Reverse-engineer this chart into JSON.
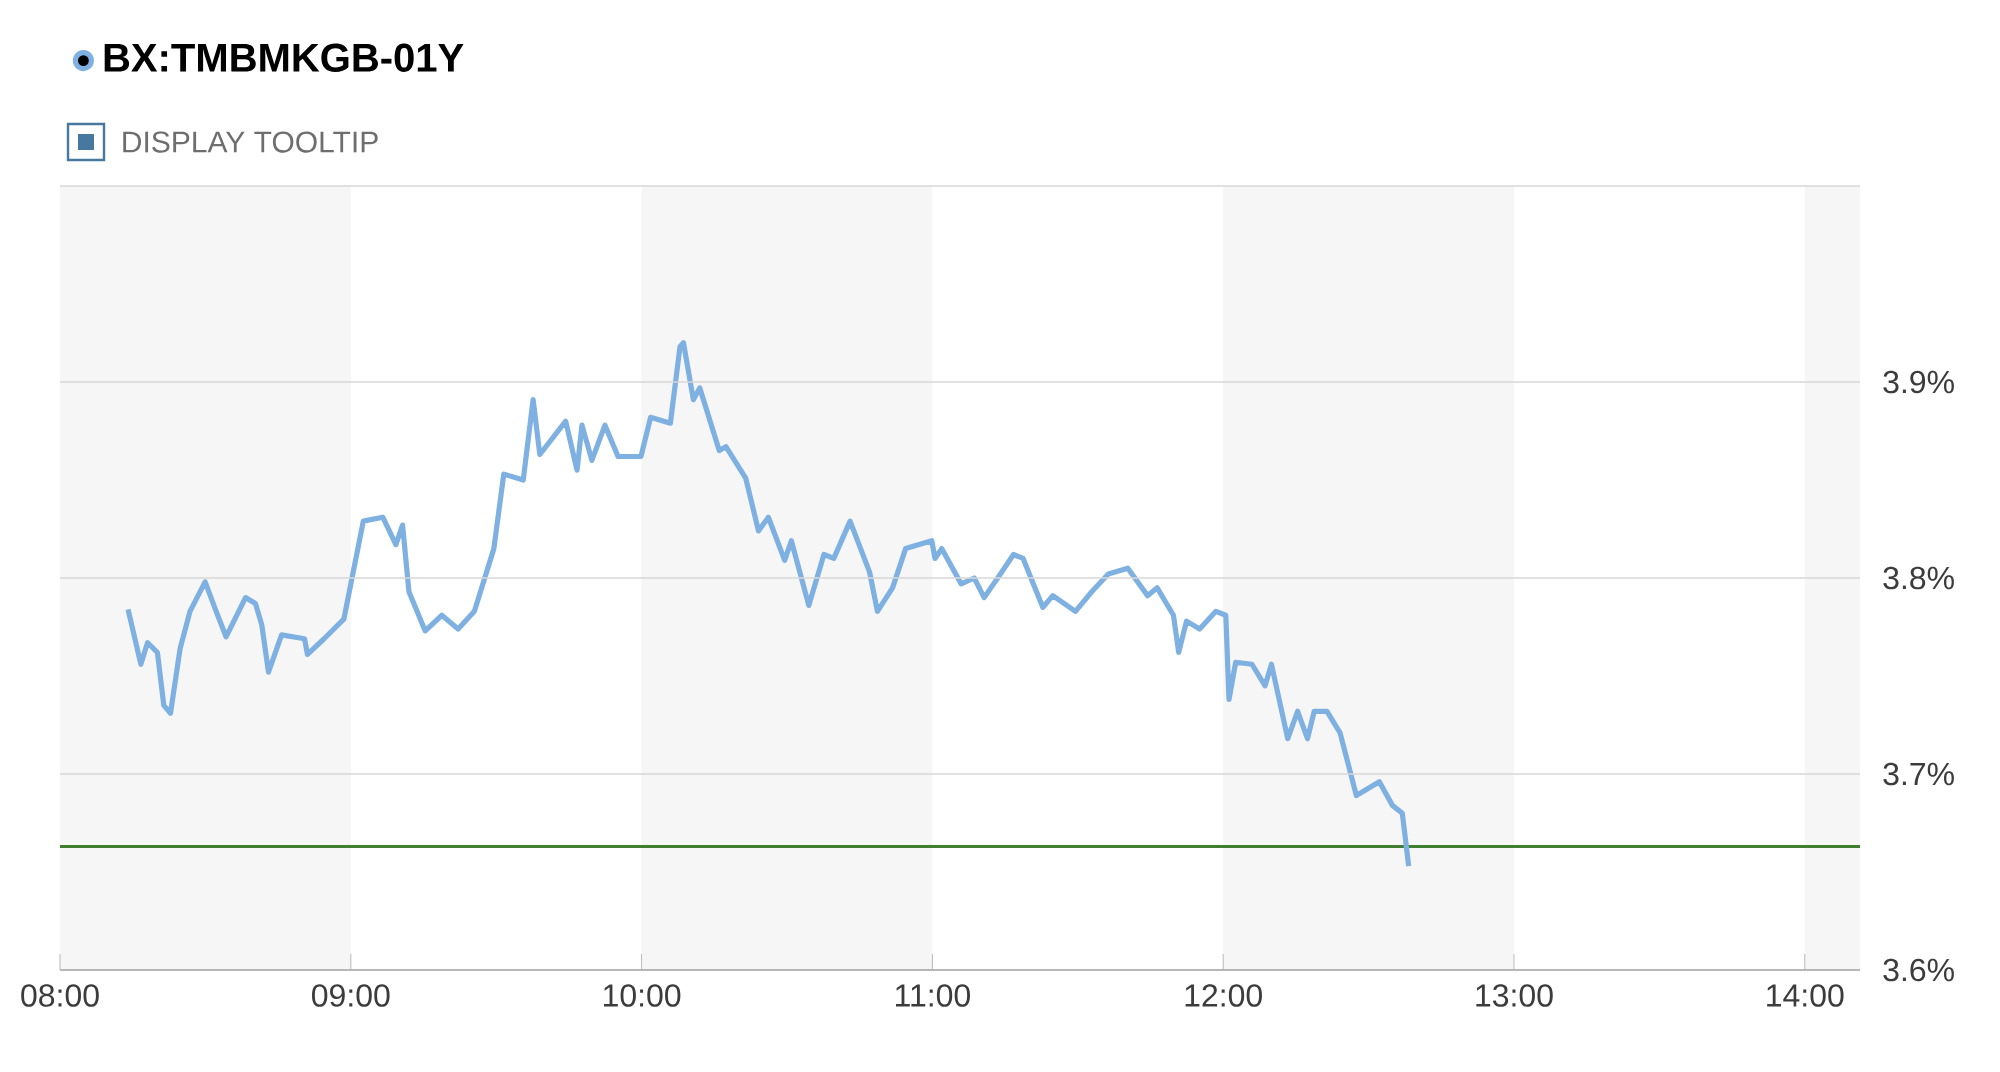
{
  "chart_data": {
    "type": "line",
    "x": [
      8.234,
      8.278,
      8.301,
      8.335,
      8.357,
      8.38,
      8.413,
      8.447,
      8.499,
      8.537,
      8.571,
      8.638,
      8.672,
      8.694,
      8.717,
      8.762,
      8.841,
      8.851,
      8.908,
      8.976,
      9.043,
      9.11,
      9.155,
      9.178,
      9.2,
      9.256,
      9.313,
      9.369,
      9.425,
      9.492,
      9.526,
      9.593,
      9.627,
      9.65,
      9.739,
      9.778,
      9.795,
      9.829,
      9.874,
      9.919,
      9.998,
      10.031,
      10.099,
      10.132,
      10.144,
      10.178,
      10.2,
      10.267,
      10.29,
      10.358,
      10.402,
      10.436,
      10.492,
      10.515,
      10.575,
      10.627,
      10.661,
      10.717,
      10.784,
      10.811,
      10.863,
      10.908,
      10.998,
      11.009,
      11.032,
      11.099,
      11.144,
      11.178,
      11.234,
      11.279,
      11.312,
      11.38,
      11.414,
      11.492,
      11.548,
      11.605,
      11.672,
      11.74,
      11.773,
      11.829,
      11.847,
      11.874,
      11.919,
      11.975,
      12.009,
      12.02,
      12.043,
      12.099,
      12.144,
      12.166,
      12.222,
      12.256,
      12.29,
      12.313,
      12.357,
      12.402,
      12.458,
      12.537,
      12.582,
      12.616,
      12.638
    ],
    "series": [
      {
        "name": "BX:TMBMKGB-01Y",
        "color": "#7fb0e2",
        "values": [
          3.784,
          3.756,
          3.767,
          3.762,
          3.735,
          3.731,
          3.764,
          3.783,
          3.798,
          3.783,
          3.77,
          3.79,
          3.787,
          3.776,
          3.752,
          3.771,
          3.769,
          3.761,
          3.769,
          3.779,
          3.829,
          3.831,
          3.817,
          3.827,
          3.793,
          3.773,
          3.781,
          3.774,
          3.783,
          3.815,
          3.853,
          3.85,
          3.891,
          3.863,
          3.88,
          3.855,
          3.878,
          3.86,
          3.878,
          3.862,
          3.862,
          3.882,
          3.879,
          3.918,
          3.92,
          3.891,
          3.897,
          3.865,
          3.867,
          3.851,
          3.824,
          3.831,
          3.809,
          3.819,
          3.786,
          3.812,
          3.81,
          3.829,
          3.803,
          3.783,
          3.795,
          3.815,
          3.819,
          3.81,
          3.815,
          3.797,
          3.8,
          3.79,
          3.802,
          3.812,
          3.81,
          3.785,
          3.791,
          3.783,
          3.793,
          3.802,
          3.805,
          3.791,
          3.795,
          3.781,
          3.762,
          3.778,
          3.774,
          3.783,
          3.781,
          3.738,
          3.757,
          3.756,
          3.745,
          3.756,
          3.718,
          3.732,
          3.718,
          3.732,
          3.732,
          3.721,
          3.689,
          3.696,
          3.684,
          3.68,
          3.653
        ]
      }
    ],
    "xlim": [
      8,
      14.19
    ],
    "xticks": [
      {
        "value": 8,
        "label": "08:00"
      },
      {
        "value": 9,
        "label": "09:00"
      },
      {
        "value": 10,
        "label": "10:00"
      },
      {
        "value": 11,
        "label": "11:00"
      },
      {
        "value": 12,
        "label": "12:00"
      },
      {
        "value": 13,
        "label": "13:00"
      },
      {
        "value": 14,
        "label": "14:00"
      }
    ],
    "ylim": [
      3.6,
      4.0
    ],
    "yticks": [
      {
        "value": 3.6,
        "label": "3.6%"
      },
      {
        "value": 3.7,
        "label": "3.7%"
      },
      {
        "value": 3.8,
        "label": "3.8%"
      },
      {
        "value": 3.9,
        "label": "3.9%"
      },
      {
        "value": 4.0,
        "label": null
      }
    ],
    "grid": "y",
    "legend": "top left",
    "line_style": "solid",
    "marker": "none",
    "ref_lines": [
      {
        "axis": "y",
        "value": 3.663,
        "color": "#3f7f2f"
      }
    ],
    "bands": [
      {
        "axis": "x",
        "from": 8,
        "to": 9,
        "color": "#f6f6f6"
      },
      {
        "axis": "x",
        "from": 10,
        "to": 11,
        "color": "#f6f6f6"
      },
      {
        "axis": "x",
        "from": 12,
        "to": 13,
        "color": "#f6f6f6"
      },
      {
        "axis": "x",
        "from": 14,
        "to": 14.19,
        "color": "#f6f6f6"
      }
    ],
    "annotations": [
      "DISPLAY TOOLTIP"
    ]
  }
}
